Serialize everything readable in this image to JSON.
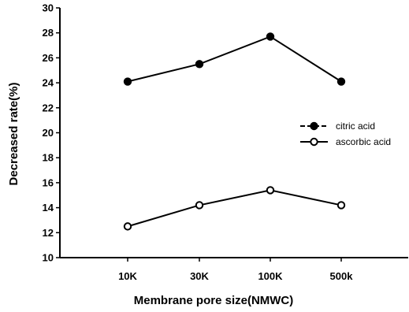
{
  "chart_data": {
    "type": "line",
    "xlabel": "Membrane pore size(NMWC)",
    "ylabel": "Decreased rate(%)",
    "categories": [
      "10K",
      "30K",
      "100K",
      "500k"
    ],
    "ylim": [
      10,
      30
    ],
    "yticks": [
      "10",
      "12",
      "14",
      "16",
      "18",
      "20",
      "22",
      "24",
      "26",
      "28",
      "30"
    ],
    "grid": false,
    "legend_position": "right",
    "series": [
      {
        "name": "citric acid",
        "values": [
          24.1,
          25.5,
          27.7,
          24.1
        ],
        "marker": "filled-circle",
        "color": "#000000"
      },
      {
        "name": "ascorbic acid",
        "values": [
          12.5,
          14.2,
          15.4,
          14.2
        ],
        "marker": "open-circle",
        "color": "#000000"
      }
    ]
  }
}
